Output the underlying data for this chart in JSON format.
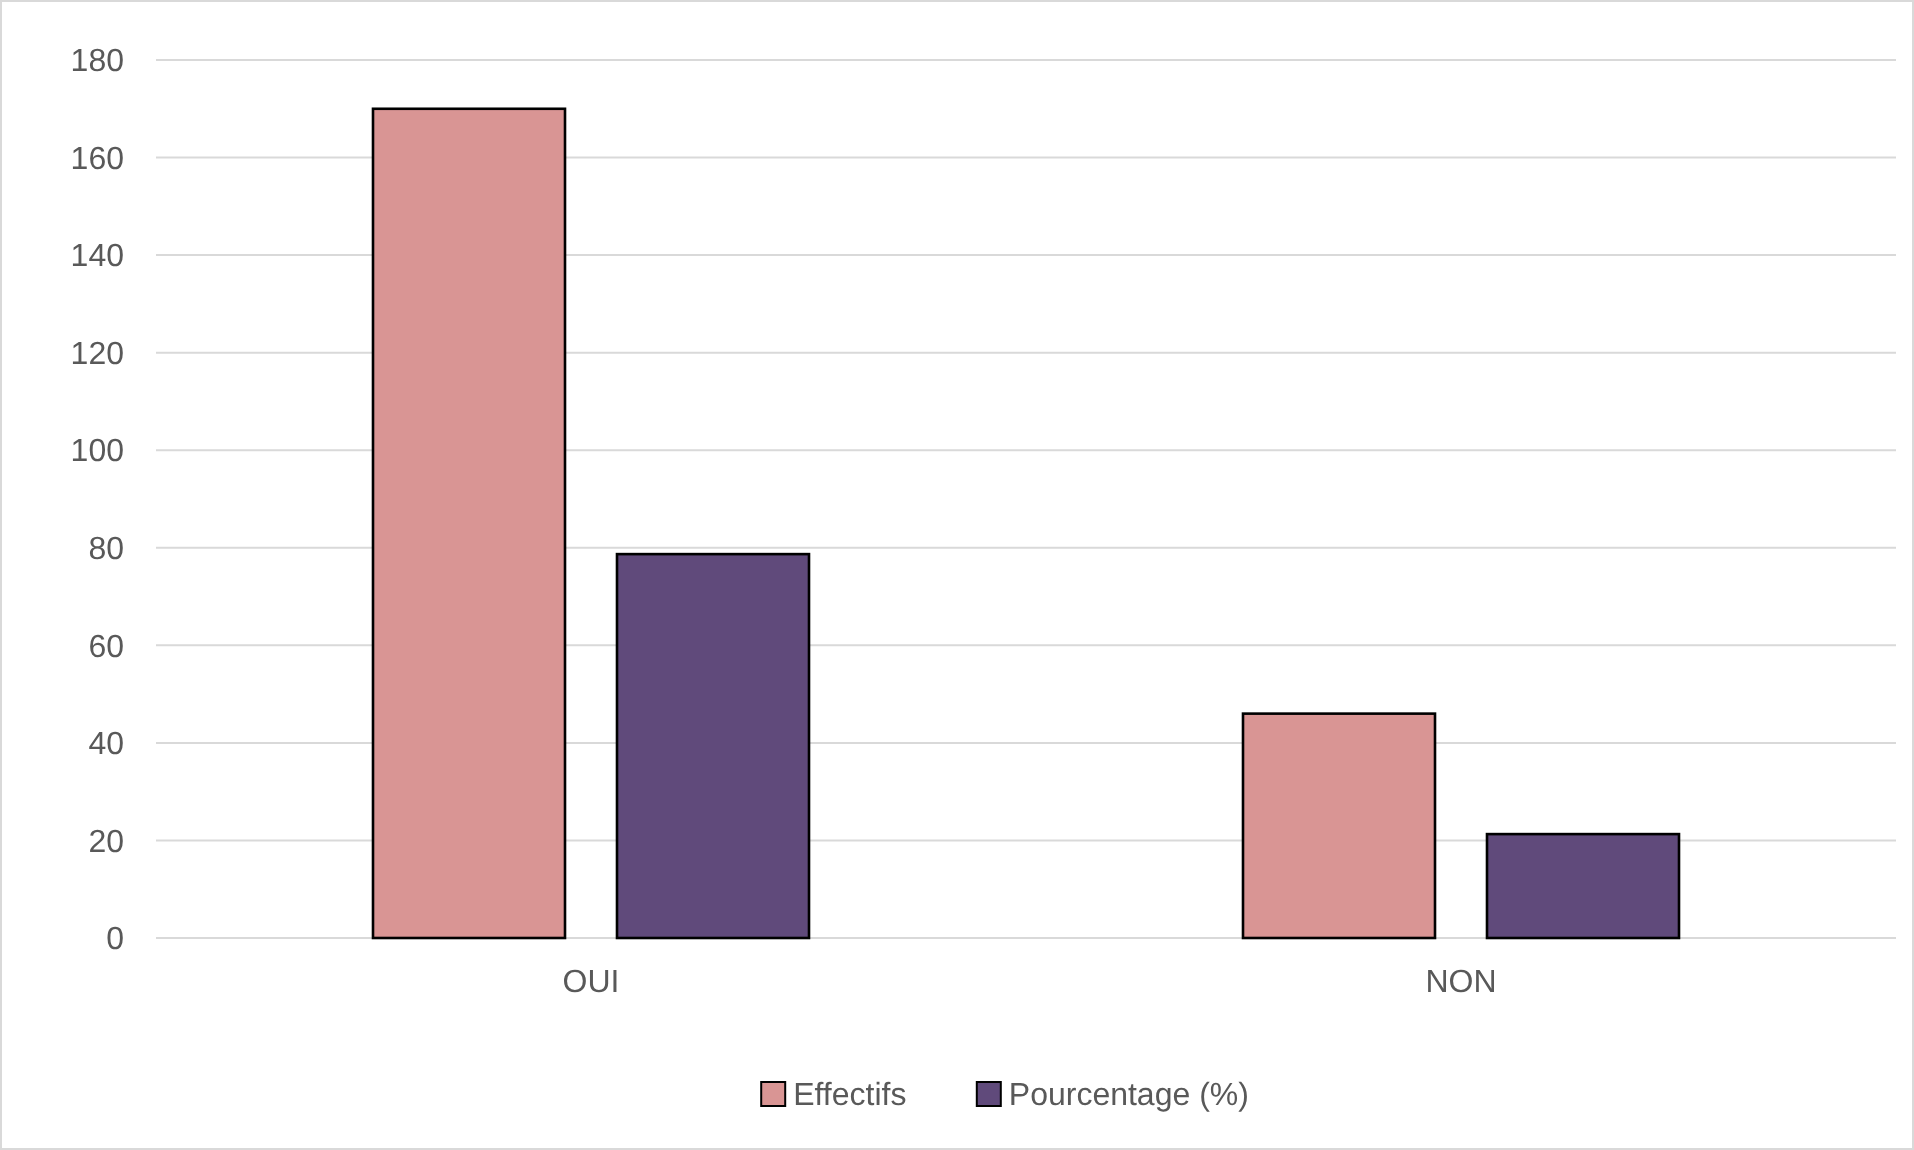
{
  "chart_data": {
    "type": "bar",
    "categories": [
      "OUI",
      "NON"
    ],
    "series": [
      {
        "name": "Effectifs",
        "color": "#d99594",
        "values": [
          170,
          46
        ]
      },
      {
        "name": "Pourcentage (%)",
        "color": "#604a7b",
        "values": [
          78.7,
          21.3
        ]
      }
    ],
    "ylim": [
      0,
      180
    ],
    "yticks": [
      0,
      20,
      40,
      60,
      80,
      100,
      120,
      140,
      160,
      180
    ],
    "grid": "y",
    "legend": "bottom"
  }
}
